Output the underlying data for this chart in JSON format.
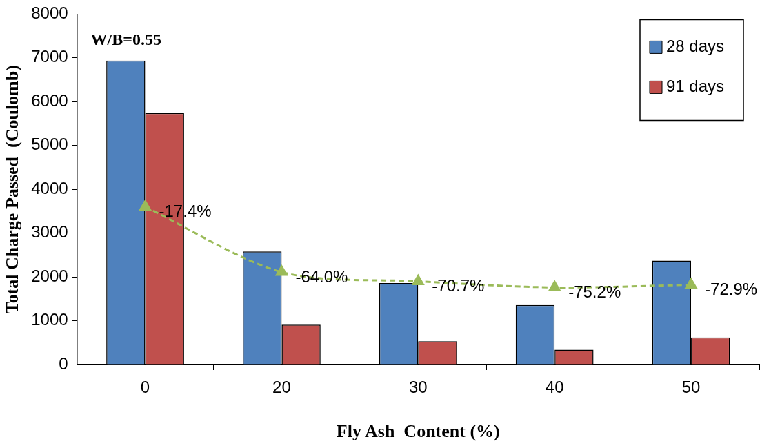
{
  "chart_data": {
    "type": "bar",
    "xlabel": "Fly Ash  Content (%)",
    "ylabel": "Total Charge Passed  (Coulomb)",
    "categories": [
      "0",
      "20",
      "30",
      "40",
      "50"
    ],
    "series": [
      {
        "name": "28 days",
        "color": "#4f81bd",
        "values": [
          6940,
          2580,
          1860,
          1360,
          2370
        ]
      },
      {
        "name": "91 days",
        "color": "#c0504d",
        "values": [
          5740,
          910,
          530,
          340,
          620
        ]
      },
      {
        "type": "line",
        "color": "#9bbb59",
        "values": [
          3600,
          2110,
          1900,
          1760,
          1820
        ]
      }
    ],
    "ylim": [
      0,
      8000
    ],
    "yticks": [
      0,
      1000,
      2000,
      3000,
      4000,
      5000,
      6000,
      7000,
      8000
    ],
    "grid": false,
    "legend": "top right",
    "marker": "triangle",
    "line_style": "dashed",
    "annotations": [
      "W/B=0.55",
      {
        "text": "-17.4%",
        "x": "0",
        "y": 3600
      },
      {
        "text": "-64.0%",
        "x": "20",
        "y": 2110
      },
      {
        "text": "-70.7%",
        "x": "30",
        "y": 1900
      },
      {
        "text": "-75.2%",
        "x": "40",
        "y": 1760
      },
      {
        "text": "-72.9%",
        "x": "50",
        "y": 1820
      }
    ]
  }
}
